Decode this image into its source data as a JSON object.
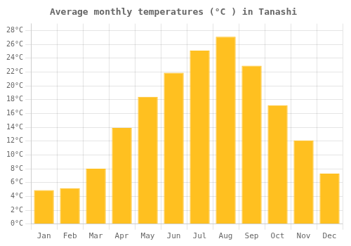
{
  "chart_data": {
    "type": "bar",
    "title": "Average monthly temperatures (°C ) in Tanashi",
    "categories": [
      "Jan",
      "Feb",
      "Mar",
      "Apr",
      "May",
      "Jun",
      "Jul",
      "Aug",
      "Sep",
      "Oct",
      "Nov",
      "Dec"
    ],
    "values": [
      4.9,
      5.2,
      8.0,
      13.9,
      18.4,
      21.9,
      25.1,
      27.1,
      22.9,
      17.2,
      12.1,
      7.3
    ],
    "color": "#FFC020",
    "ylim": [
      0,
      29
    ],
    "yticks": [
      {
        "value": 0,
        "label": "0°C"
      },
      {
        "value": 2,
        "label": "2°C"
      },
      {
        "value": 4,
        "label": "4°C"
      },
      {
        "value": 6,
        "label": "6°C"
      },
      {
        "value": 8,
        "label": "8°C"
      },
      {
        "value": 10,
        "label": "10°C"
      },
      {
        "value": 12,
        "label": "12°C"
      },
      {
        "value": 14,
        "label": "14°C"
      },
      {
        "value": 16,
        "label": "16°C"
      },
      {
        "value": 18,
        "label": "18°C"
      },
      {
        "value": 20,
        "label": "20°C"
      },
      {
        "value": 22,
        "label": "22°C"
      },
      {
        "value": 24,
        "label": "24°C"
      },
      {
        "value": 26,
        "label": "26°C"
      },
      {
        "value": 28,
        "label": "28°C"
      }
    ],
    "grid": true
  }
}
